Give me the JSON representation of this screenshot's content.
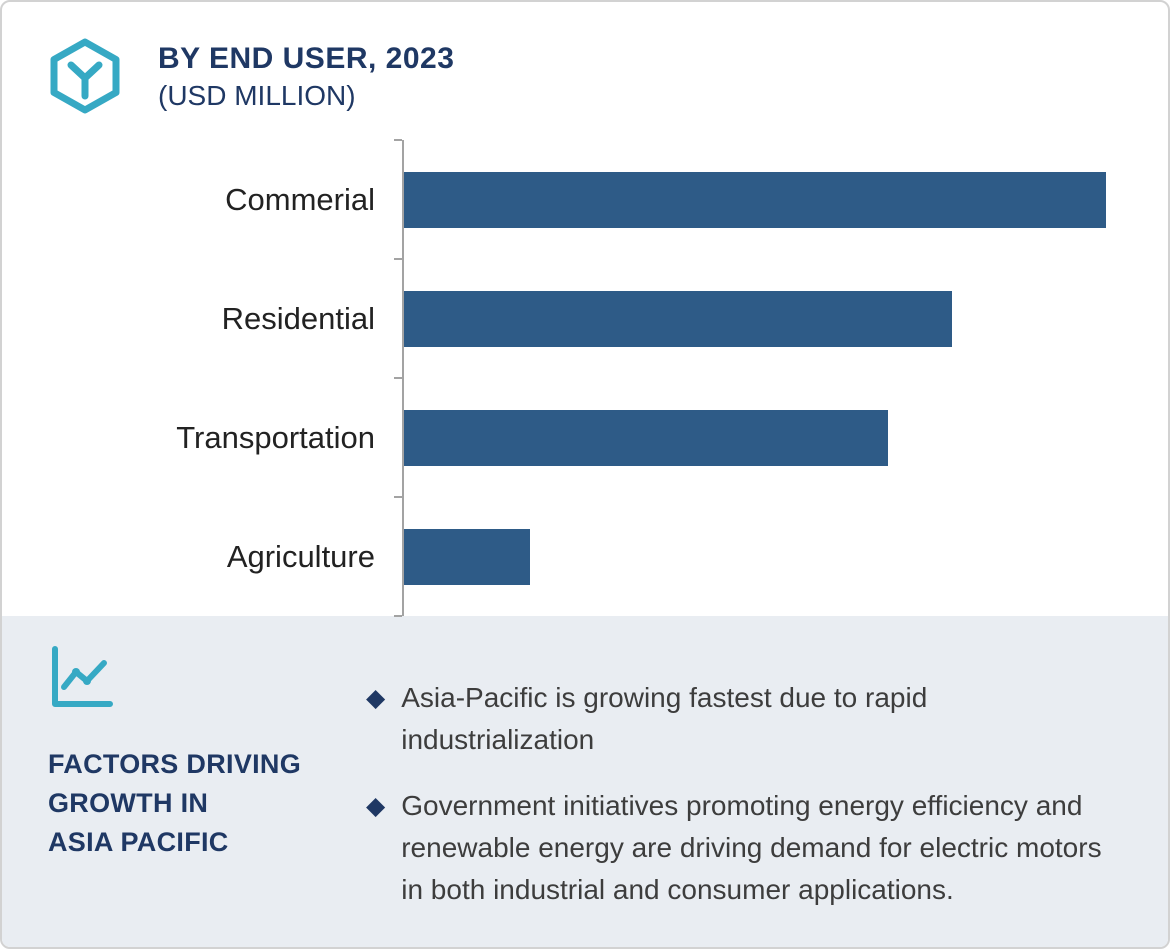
{
  "colors": {
    "navy": "#1f3864",
    "bar": "#2e5b87",
    "teal": "#36a9c4",
    "panel_bg": "#e9edf2",
    "axis": "#a3a3a3"
  },
  "header": {
    "title": "BY END USER, 2023",
    "subtitle": "(USD MILLION)"
  },
  "chart_data": {
    "type": "bar",
    "orientation": "horizontal",
    "title": "BY END USER, 2023 (USD MILLION)",
    "categories": [
      "Commerial",
      "Residential",
      "Transportation",
      "Agriculture"
    ],
    "values": [
      100,
      78,
      69,
      18
    ],
    "xlim": [
      0,
      100
    ],
    "xlabel": "",
    "ylabel": "",
    "grid": false,
    "legend": false,
    "bar_color": "#2e5b87"
  },
  "factors": {
    "heading": "FACTORS DRIVING\nGROWTH IN\nASIA PACIFIC",
    "bullet_glyph": "◆",
    "bullets": [
      "Asia-Pacific is growing fastest due to rapid industrialization",
      "Government initiatives promoting energy efficiency and renewable energy are driving demand for electric motors in both industrial and consumer applications."
    ]
  },
  "icons": {
    "brand_logo": "hexagon-y-logo",
    "factors_icon": "line-chart-icon",
    "bullet_icon": "diamond-bullet-icon"
  }
}
